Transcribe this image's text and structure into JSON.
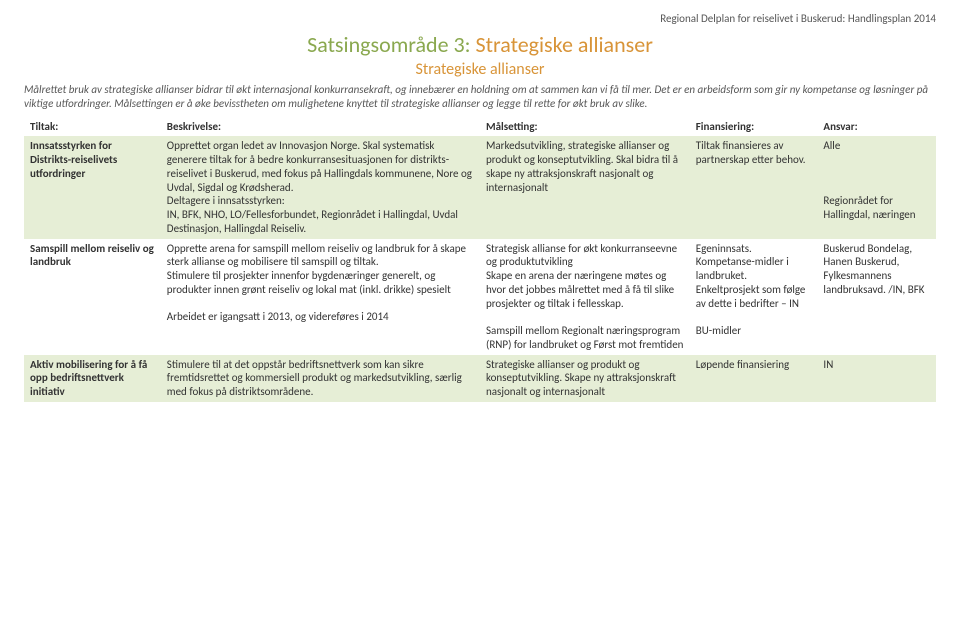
{
  "header_right": "Regional Delplan for reiselivet i Buskerud: Handlingsplan 2014",
  "title_green": "Satsingsområde 3:",
  "title_orange": " Strategiske allianser",
  "subtitle": "Strategiske allianser",
  "intro": "Målrettet bruk av strategiske allianser bidrar til økt internasjonal konkurransekraft, og innebærer en holdning om at sammen kan vi få til mer. Det er en arbeidsform som gir ny kompetanse og løsninger på viktige utfordringer. Målsettingen er å øke bevisstheten om mulighetene knyttet til strategiske allianser og legge til rette for økt bruk av slike.",
  "columns": {
    "tiltak": "Tiltak:",
    "beskrivelse": "Beskrivelse:",
    "malsetting": "Målsetting:",
    "finansiering": "Finansiering:",
    "ansvar": "Ansvar:"
  },
  "rows": [
    {
      "tiltak": "Innsatsstyrken for Distrikts-reiselivets utfordringer",
      "beskrivelse": "Opprettet organ ledet av Innovasjon Norge. Skal systematisk generere tiltak for å bedre konkurransesituasjonen for distrikts-reiselivet i Buskerud, med fokus på Hallingdals kommunene, Nore og Uvdal, Sigdal og Krødsherad.\nDeltagere i innsatsstyrken:\nIN, BFK, NHO, LO/Fellesforbundet, Regionrådet i Hallingdal, Uvdal Destinasjon, Hallingdal Reiseliv.",
      "malsetting": "Markedsutvikling, strategiske allianser og produkt og konseptutvikling. Skal bidra til å skape ny attraksjonskraft nasjonalt og internasjonalt",
      "finansiering": "Tiltak finansieres av partnerskap etter behov.",
      "ansvar": "Alle\n\n\n\nRegionrådet for Hallingdal, næringen"
    },
    {
      "tiltak": "Samspill mellom reiseliv og landbruk",
      "beskrivelse": "Opprette arena for samspill mellom reiseliv og landbruk for å skape sterk allianse og mobilisere til samspill og tiltak.\nStimulere til prosjekter innenfor bygdenæringer generelt, og produkter innen grønt reiseliv og lokal mat (inkl. drikke) spesielt\n\nArbeidet er igangsatt i 2013, og videreføres i 2014",
      "malsetting": "Strategisk allianse for økt konkurranseevne og produktutvikling\nSkape en arena der næringene møtes og hvor det jobbes målrettet med å få til slike prosjekter og tiltak i fellesskap.\n\nSamspill mellom Regionalt næringsprogram (RNP) for landbruket og Først mot fremtiden",
      "finansiering": "Egeninnsats.\nKompetanse-midler i landbruket.\nEnkeltprosjekt som følge av dette i bedrifter – IN\n\nBU-midler",
      "ansvar": "Buskerud Bondelag,\nHanen Buskerud, Fylkesmannens landbruksavd. /IN, BFK"
    },
    {
      "tiltak": "Aktiv mobilisering for å få opp bedriftsnettverk initiativ",
      "beskrivelse": "Stimulere til at det oppstår bedriftsnettverk som kan sikre fremtidsrettet og kommersiell produkt og markedsutvikling, særlig med fokus på distriktsområdene.",
      "malsetting": "Strategiske allianser og produkt og konseptutvikling. Skape ny attraksjonskraft nasjonalt og internasjonalt",
      "finansiering": "Løpende finansiering",
      "ansvar": "IN"
    }
  ]
}
